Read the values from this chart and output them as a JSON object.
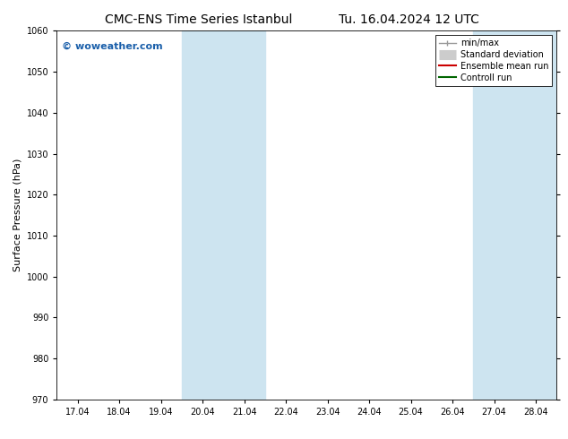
{
  "title_left": "CMC-ENS Time Series Istanbul",
  "title_right": "Tu. 16.04.2024 12 UTC",
  "ylabel": "Surface Pressure (hPa)",
  "ylim": [
    970,
    1060
  ],
  "yticks": [
    970,
    980,
    990,
    1000,
    1010,
    1020,
    1030,
    1040,
    1050,
    1060
  ],
  "xtick_labels": [
    "17.04",
    "18.04",
    "19.04",
    "20.04",
    "21.04",
    "22.04",
    "23.04",
    "24.04",
    "25.04",
    "26.04",
    "27.04",
    "28.04"
  ],
  "num_xticks": 12,
  "xlim": [
    -0.5,
    11.5
  ],
  "shaded_regions": [
    {
      "xmin": 2.5,
      "xmax": 4.5
    },
    {
      "xmin": 9.5,
      "xmax": 11.5
    }
  ],
  "shaded_color": "#cde4f0",
  "background_color": "#ffffff",
  "plot_bg_color": "#ffffff",
  "watermark_text": "© woweather.com",
  "watermark_color": "#1a5faa",
  "legend_labels": [
    "min/max",
    "Standard deviation",
    "Ensemble mean run",
    "Controll run"
  ],
  "legend_colors": [
    "#999999",
    "#cccccc",
    "#cc0000",
    "#006600"
  ],
  "title_fontsize": 10,
  "tick_fontsize": 7,
  "ylabel_fontsize": 8,
  "watermark_fontsize": 8,
  "legend_fontsize": 7,
  "figsize": [
    6.34,
    4.9
  ],
  "dpi": 100
}
